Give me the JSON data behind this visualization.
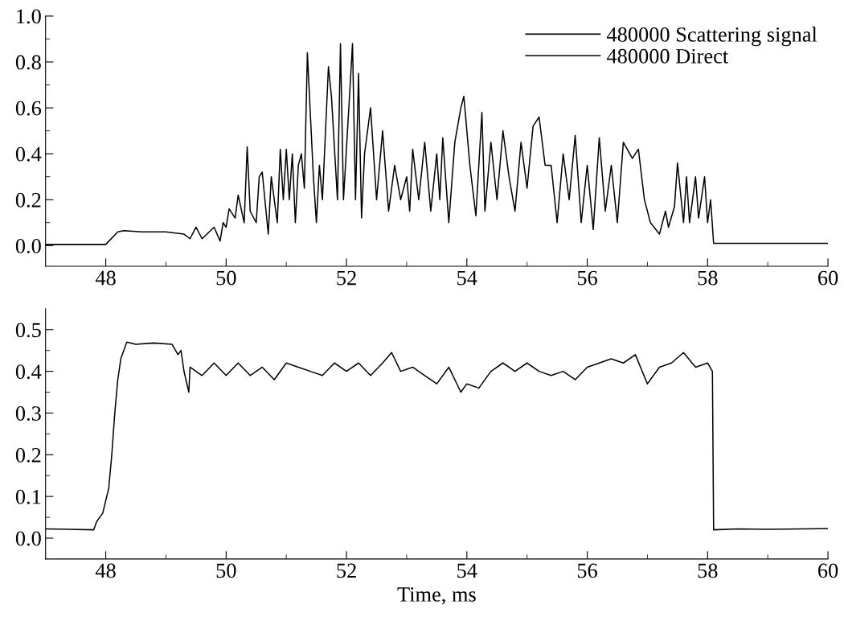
{
  "chart_data": [
    {
      "type": "line",
      "xlim": [
        47,
        60
      ],
      "ylim": [
        -0.09,
        1.0
      ],
      "xticks": [
        48,
        {
          "value": 49,
          "label": null
        },
        50,
        {
          "value": 51,
          "label": null
        },
        52,
        {
          "value": 53,
          "label": null
        },
        54,
        {
          "value": 55,
          "label": null
        },
        56,
        {
          "value": 57,
          "label": null
        },
        58,
        {
          "value": 59,
          "label": null
        },
        60
      ],
      "yticks": [
        {
          "value": 0,
          "label": "0.0"
        },
        {
          "value": 0.1,
          "label": null
        },
        {
          "value": 0.2,
          "label": "0.2"
        },
        {
          "value": 0.3,
          "label": null
        },
        {
          "value": 0.4,
          "label": "0.4"
        },
        {
          "value": 0.5,
          "label": null
        },
        {
          "value": 0.6,
          "label": "0.6"
        },
        {
          "value": 0.7,
          "label": null
        },
        {
          "value": 0.8,
          "label": "0.8"
        },
        {
          "value": 0.9,
          "label": null
        },
        {
          "value": 1.0,
          "label": "1.0"
        }
      ],
      "legend": "top right",
      "grid": false,
      "marker": "none",
      "line_style": "solid",
      "series": [
        {
          "name": "480000 Scattering signal",
          "color": "#000000",
          "x": [
            47.0,
            47.5,
            48.0,
            48.2,
            48.3,
            48.6,
            49.0,
            49.3,
            49.4,
            49.5,
            49.6,
            49.8,
            49.9,
            49.95,
            50.0,
            50.05,
            50.15,
            50.2,
            50.3,
            50.35,
            50.4,
            50.5,
            50.55,
            50.6,
            50.7,
            50.75,
            50.85,
            50.9,
            50.95,
            51.0,
            51.05,
            51.1,
            51.15,
            51.2,
            51.25,
            51.3,
            51.35,
            51.45,
            51.5,
            51.55,
            51.6,
            51.7,
            51.75,
            51.85,
            51.9,
            51.95,
            52.05,
            52.1,
            52.15,
            52.2,
            52.25,
            52.3,
            52.4,
            52.5,
            52.6,
            52.7,
            52.8,
            52.9,
            53.0,
            53.05,
            53.1,
            53.2,
            53.3,
            53.4,
            53.5,
            53.55,
            53.6,
            53.7,
            53.8,
            53.9,
            53.95,
            54.05,
            54.15,
            54.25,
            54.3,
            54.4,
            54.5,
            54.6,
            54.7,
            54.8,
            54.9,
            55.0,
            55.1,
            55.2,
            55.3,
            55.4,
            55.5,
            55.6,
            55.7,
            55.8,
            55.9,
            56.0,
            56.1,
            56.2,
            56.3,
            56.4,
            56.5,
            56.6,
            56.75,
            56.85,
            56.95,
            57.05,
            57.2,
            57.3,
            57.35,
            57.45,
            57.5,
            57.6,
            57.65,
            57.7,
            57.8,
            57.85,
            57.95,
            58.0,
            58.05,
            58.1,
            58.2,
            59.0,
            60.0
          ],
          "values": [
            0.005,
            0.005,
            0.005,
            0.06,
            0.065,
            0.06,
            0.06,
            0.05,
            0.03,
            0.08,
            0.03,
            0.08,
            0.02,
            0.1,
            0.08,
            0.16,
            0.12,
            0.22,
            0.1,
            0.43,
            0.15,
            0.1,
            0.3,
            0.32,
            0.05,
            0.3,
            0.1,
            0.42,
            0.2,
            0.42,
            0.2,
            0.4,
            0.1,
            0.35,
            0.4,
            0.25,
            0.84,
            0.3,
            0.1,
            0.35,
            0.2,
            0.78,
            0.65,
            0.2,
            0.88,
            0.2,
            0.65,
            0.88,
            0.2,
            0.75,
            0.12,
            0.4,
            0.6,
            0.2,
            0.5,
            0.15,
            0.35,
            0.2,
            0.3,
            0.15,
            0.42,
            0.2,
            0.45,
            0.15,
            0.4,
            0.2,
            0.47,
            0.1,
            0.45,
            0.6,
            0.65,
            0.35,
            0.13,
            0.58,
            0.15,
            0.45,
            0.2,
            0.5,
            0.3,
            0.15,
            0.45,
            0.25,
            0.52,
            0.56,
            0.35,
            0.35,
            0.1,
            0.4,
            0.2,
            0.48,
            0.1,
            0.35,
            0.07,
            0.47,
            0.15,
            0.35,
            0.1,
            0.45,
            0.38,
            0.42,
            0.2,
            0.1,
            0.05,
            0.15,
            0.08,
            0.17,
            0.36,
            0.1,
            0.3,
            0.1,
            0.3,
            0.12,
            0.3,
            0.1,
            0.2,
            0.01,
            0.01,
            0.01,
            0.01
          ]
        }
      ]
    },
    {
      "type": "line",
      "xlim": [
        47,
        60
      ],
      "ylim": [
        -0.05,
        0.55
      ],
      "xlabel": "Time, ms",
      "xticks": [
        48,
        {
          "value": 49,
          "label": null
        },
        50,
        {
          "value": 51,
          "label": null
        },
        52,
        {
          "value": 53,
          "label": null
        },
        54,
        {
          "value": 55,
          "label": null
        },
        56,
        {
          "value": 57,
          "label": null
        },
        58,
        {
          "value": 59,
          "label": null
        },
        60
      ],
      "yticks": [
        {
          "value": 0,
          "label": "0.0"
        },
        {
          "value": 0.05,
          "label": null
        },
        {
          "value": 0.1,
          "label": "0.1"
        },
        {
          "value": 0.15,
          "label": null
        },
        {
          "value": 0.2,
          "label": "0.2"
        },
        {
          "value": 0.25,
          "label": null
        },
        {
          "value": 0.3,
          "label": "0.3"
        },
        {
          "value": 0.35,
          "label": null
        },
        {
          "value": 0.4,
          "label": "0.4"
        },
        {
          "value": 0.45,
          "label": null
        },
        {
          "value": 0.5,
          "label": "0.5"
        }
      ],
      "grid": false,
      "marker": "none",
      "line_style": "solid",
      "series": [
        {
          "name": "480000 Direct",
          "color": "#000000",
          "x": [
            47.0,
            47.4,
            47.8,
            47.85,
            47.95,
            48.05,
            48.1,
            48.15,
            48.2,
            48.25,
            48.35,
            48.5,
            48.8,
            49.1,
            49.2,
            49.25,
            49.3,
            49.38,
            49.4,
            49.6,
            49.8,
            50.0,
            50.2,
            50.4,
            50.6,
            50.8,
            51.0,
            51.2,
            51.4,
            51.6,
            51.8,
            52.0,
            52.2,
            52.4,
            52.6,
            52.75,
            52.9,
            53.1,
            53.3,
            53.5,
            53.7,
            53.9,
            54.0,
            54.2,
            54.4,
            54.6,
            54.8,
            55.0,
            55.2,
            55.4,
            55.6,
            55.8,
            56.0,
            56.2,
            56.4,
            56.6,
            56.8,
            57.0,
            57.2,
            57.4,
            57.6,
            57.8,
            58.0,
            58.08,
            58.1,
            58.5,
            59.0,
            60.0
          ],
          "values": [
            0.022,
            0.021,
            0.02,
            0.04,
            0.06,
            0.12,
            0.2,
            0.3,
            0.38,
            0.43,
            0.47,
            0.465,
            0.468,
            0.465,
            0.44,
            0.45,
            0.4,
            0.35,
            0.41,
            0.39,
            0.42,
            0.39,
            0.42,
            0.39,
            0.41,
            0.38,
            0.42,
            0.41,
            0.4,
            0.39,
            0.42,
            0.4,
            0.42,
            0.39,
            0.42,
            0.445,
            0.4,
            0.41,
            0.39,
            0.37,
            0.41,
            0.35,
            0.37,
            0.36,
            0.4,
            0.42,
            0.4,
            0.42,
            0.4,
            0.39,
            0.4,
            0.38,
            0.41,
            0.42,
            0.43,
            0.42,
            0.44,
            0.37,
            0.41,
            0.42,
            0.445,
            0.41,
            0.42,
            0.4,
            0.02,
            0.022,
            0.021,
            0.023
          ]
        }
      ]
    }
  ]
}
